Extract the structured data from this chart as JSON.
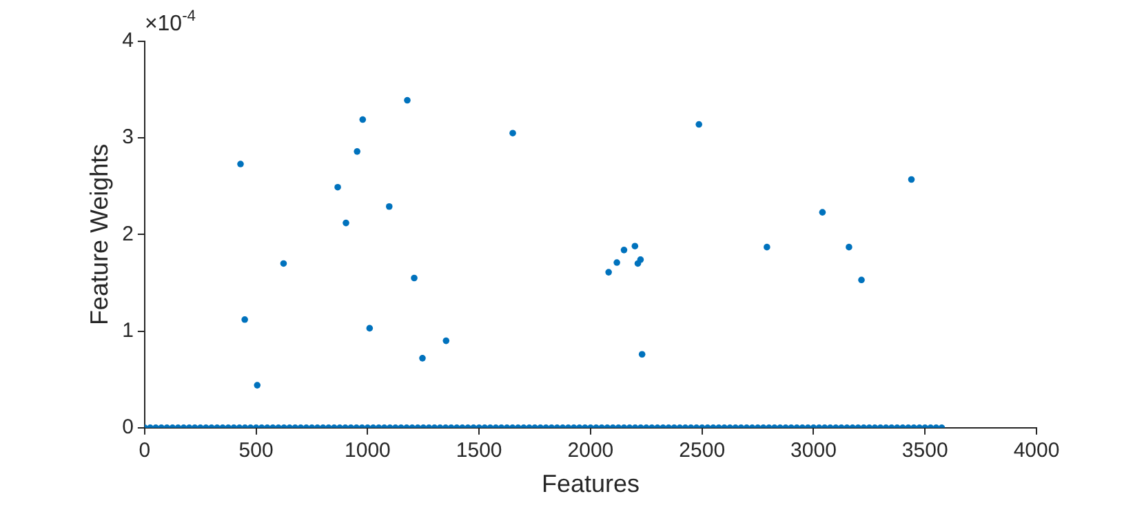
{
  "chart_data": {
    "type": "scatter",
    "xlabel": "Features",
    "ylabel": "Feature Weights",
    "annotations": [
      "×10$^{-4}$"
    ],
    "xlim": [
      0,
      4000
    ],
    "xticks": [
      0,
      500,
      1000,
      1500,
      2000,
      2500,
      3000,
      3500,
      4000
    ],
    "ylim": [
      0,
      4
    ],
    "yticks": [
      0,
      1,
      2,
      3,
      4
    ],
    "grid": false,
    "legend": false,
    "marker": "circle",
    "series": [
      {
        "color": "#0072bd",
        "x": [
          430,
          449,
          505,
          623,
          866,
          903,
          953,
          978,
          1009,
          1097,
          1178,
          1209,
          1246,
          1352,
          1651,
          2081,
          2118,
          2150,
          2199,
          2212,
          2224,
          2231,
          2486,
          2791,
          3040,
          3159,
          3215,
          3439
        ],
        "values": [
          2.73,
          1.12,
          0.44,
          1.7,
          2.49,
          2.12,
          2.86,
          3.19,
          1.03,
          2.29,
          3.39,
          1.55,
          0.72,
          0.9,
          3.05,
          1.61,
          1.71,
          1.84,
          1.88,
          1.7,
          1.74,
          0.76,
          3.14,
          1.87,
          2.23,
          1.87,
          1.53,
          2.57
        ]
      },
      {
        "color": "#0072bd",
        "x": [
          0,
          25,
          50,
          75,
          100,
          125,
          150,
          175,
          200,
          225,
          250,
          275,
          300,
          325,
          350,
          375,
          400,
          425,
          450,
          475,
          500,
          525,
          550,
          575,
          600,
          625,
          650,
          675,
          700,
          725,
          750,
          775,
          800,
          825,
          850,
          875,
          900,
          925,
          950,
          975,
          1000,
          1025,
          1050,
          1075,
          1100,
          1125,
          1150,
          1175,
          1200,
          1225,
          1250,
          1275,
          1300,
          1325,
          1350,
          1375,
          1400,
          1425,
          1450,
          1475,
          1500,
          1525,
          1550,
          1575,
          1600,
          1625,
          1650,
          1675,
          1700,
          1725,
          1750,
          1775,
          1800,
          1825,
          1850,
          1875,
          1900,
          1925,
          1950,
          1975,
          2000,
          2025,
          2050,
          2075,
          2100,
          2125,
          2150,
          2175,
          2200,
          2225,
          2250,
          2275,
          2300,
          2325,
          2350,
          2375,
          2400,
          2425,
          2450,
          2475,
          2500,
          2525,
          2550,
          2575,
          2600,
          2625,
          2650,
          2675,
          2700,
          2725,
          2750,
          2775,
          2800,
          2825,
          2850,
          2875,
          2900,
          2925,
          2950,
          2975,
          3000,
          3025,
          3050,
          3075,
          3100,
          3125,
          3150,
          3175,
          3200,
          3225,
          3250,
          3275,
          3300,
          3325,
          3350,
          3375,
          3400,
          3425,
          3450,
          3475,
          3500,
          3525,
          3550,
          3575
        ],
        "values": [
          0,
          0,
          0,
          0,
          0,
          0,
          0,
          0,
          0,
          0,
          0,
          0,
          0,
          0,
          0,
          0,
          0,
          0,
          0,
          0,
          0,
          0,
          0,
          0,
          0,
          0,
          0,
          0,
          0,
          0,
          0,
          0,
          0,
          0,
          0,
          0,
          0,
          0,
          0,
          0,
          0,
          0,
          0,
          0,
          0,
          0,
          0,
          0,
          0,
          0,
          0,
          0,
          0,
          0,
          0,
          0,
          0,
          0,
          0,
          0,
          0,
          0,
          0,
          0,
          0,
          0,
          0,
          0,
          0,
          0,
          0,
          0,
          0,
          0,
          0,
          0,
          0,
          0,
          0,
          0,
          0,
          0,
          0,
          0,
          0,
          0,
          0,
          0,
          0,
          0,
          0,
          0,
          0,
          0,
          0,
          0,
          0,
          0,
          0,
          0,
          0,
          0,
          0,
          0,
          0,
          0,
          0,
          0,
          0,
          0,
          0,
          0,
          0,
          0,
          0,
          0,
          0,
          0,
          0,
          0,
          0,
          0,
          0,
          0,
          0,
          0,
          0,
          0,
          0,
          0,
          0,
          0,
          0,
          0,
          0,
          0,
          0,
          0,
          0,
          0,
          0,
          0,
          0,
          0
        ]
      }
    ]
  }
}
